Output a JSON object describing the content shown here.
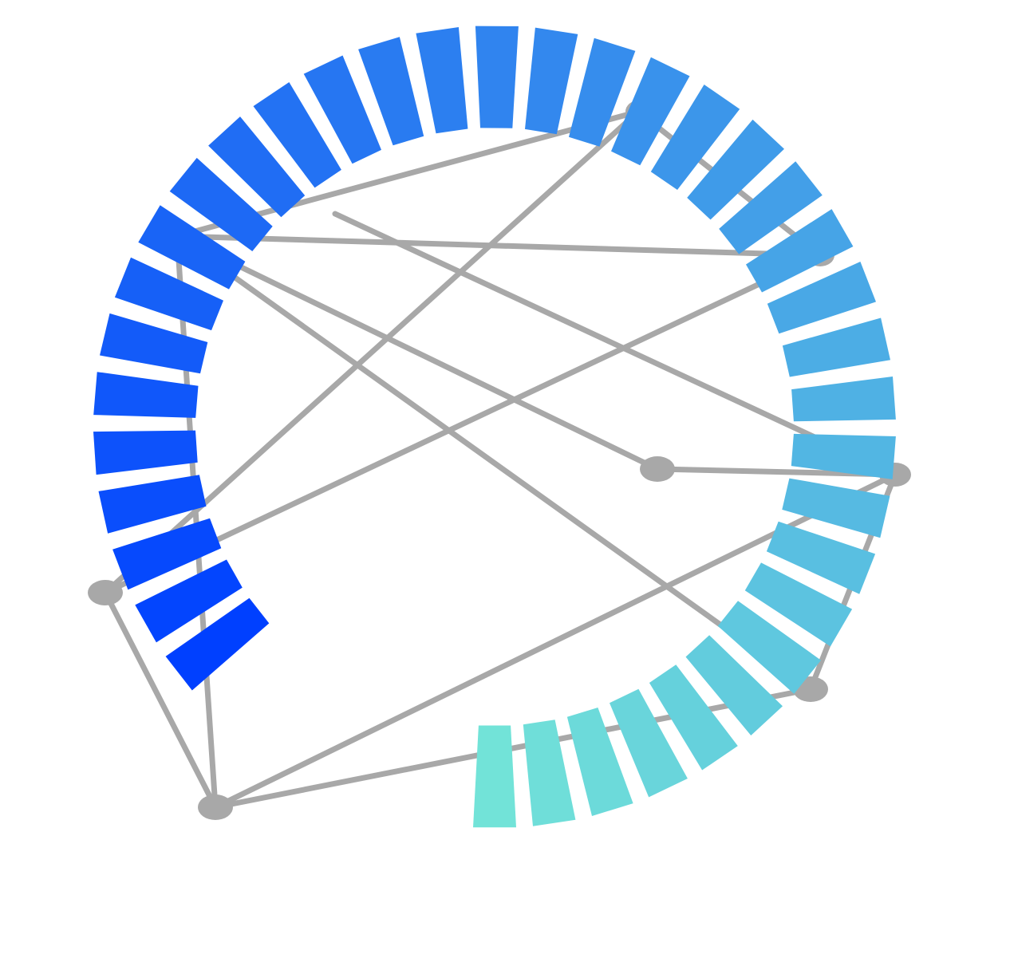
{
  "graphic": {
    "description_free": true,
    "edge_color": "#a8a8a8",
    "node_color": "#a8a8a8",
    "ring_color_start": "#0040ff",
    "ring_color_end": "#72e3d8",
    "ring_segment_count": 37
  }
}
